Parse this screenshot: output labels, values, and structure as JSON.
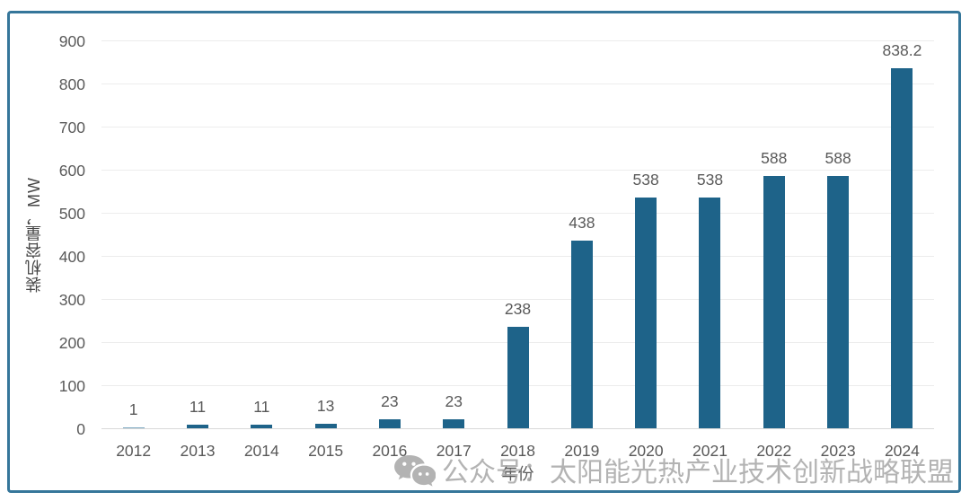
{
  "chart_data": {
    "type": "bar",
    "title": "",
    "categories": [
      "2012",
      "2013",
      "2014",
      "2015",
      "2016",
      "2017",
      "2018",
      "2019",
      "2020",
      "2021",
      "2022",
      "2023",
      "2024"
    ],
    "values": [
      1,
      11,
      11,
      13,
      23,
      23,
      238,
      438,
      538,
      538,
      588,
      588,
      838.2
    ],
    "value_labels": [
      "1",
      "11",
      "11",
      "13",
      "23",
      "23",
      "238",
      "438",
      "538",
      "538",
      "588",
      "588",
      "838.2"
    ],
    "xlabel": "年份",
    "ylabel": "装机容量，MW",
    "ylim": [
      0,
      900
    ],
    "y_ticks": [
      0,
      100,
      200,
      300,
      400,
      500,
      600,
      700,
      800,
      900
    ],
    "grid": true,
    "legend_position": "none",
    "bar_color": "#1e6389",
    "tiny_bar_color": "#7da9c2",
    "label_color": "#595959",
    "grid_color": "#ececec",
    "axis_line_color": "#d9d9d9",
    "frame_border_color": "#35769a"
  },
  "watermark": {
    "text": "公众号：太阳能光热产业技术创新战略联盟",
    "icon": "wechat-icon",
    "color": "#a6a6a6"
  }
}
